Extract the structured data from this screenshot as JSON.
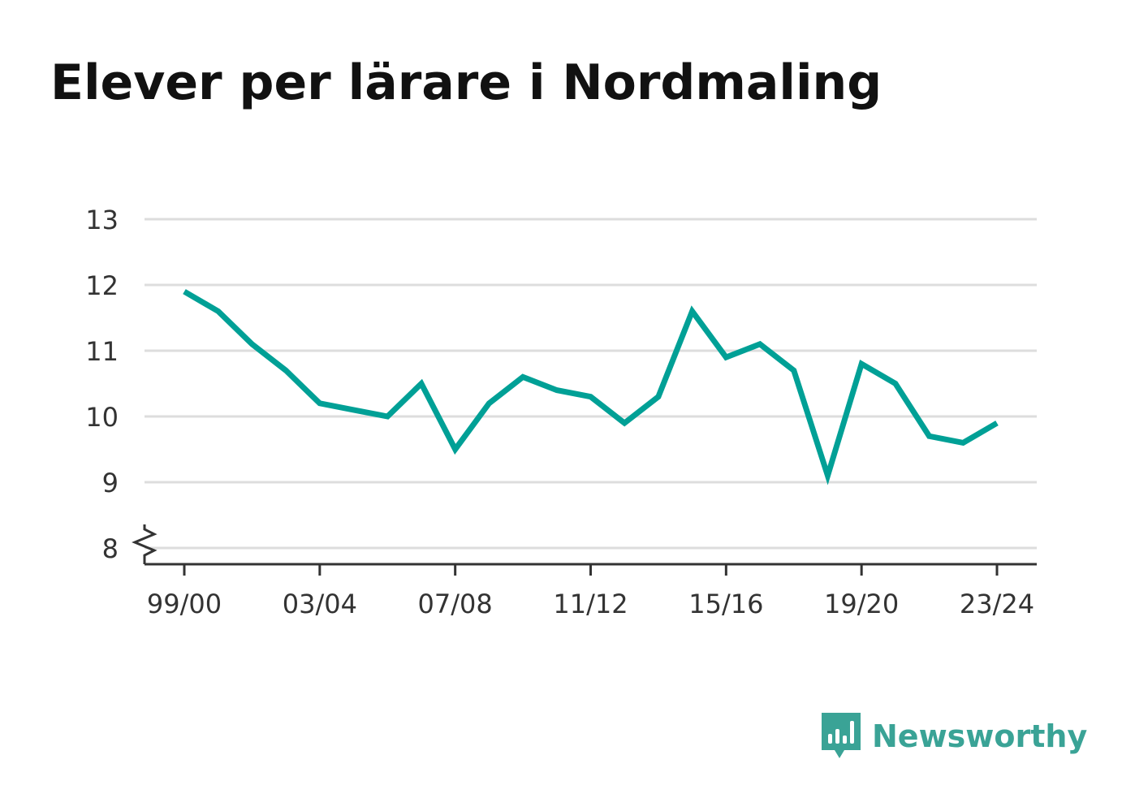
{
  "title": "Elever per lärare i Nordmaling",
  "brand": {
    "name": "Newsworthy",
    "logo_icon": "bar-chart-speech-bubble-icon",
    "color": "#3aa396"
  },
  "chart_data": {
    "type": "line",
    "title": "Elever per lärare i Nordmaling",
    "xlabel": "",
    "ylabel": "",
    "x": [
      "99/00",
      "00/01",
      "01/02",
      "02/03",
      "03/04",
      "04/05",
      "05/06",
      "06/07",
      "07/08",
      "08/09",
      "09/10",
      "10/11",
      "11/12",
      "12/13",
      "13/14",
      "14/15",
      "15/16",
      "16/17",
      "17/18",
      "18/19",
      "19/20",
      "20/21",
      "21/22",
      "22/23",
      "23/24"
    ],
    "x_tick_labels": [
      "99/00",
      "03/04",
      "07/08",
      "11/12",
      "15/16",
      "19/20",
      "23/24"
    ],
    "series": [
      {
        "color": "#00a096",
        "values": [
          11.9,
          11.6,
          11.1,
          10.7,
          10.2,
          10.1,
          10.0,
          10.5,
          9.5,
          10.2,
          10.6,
          10.4,
          10.3,
          9.9,
          10.3,
          11.6,
          10.9,
          11.1,
          10.7,
          9.1,
          10.8,
          10.5,
          9.7,
          9.6,
          9.9
        ]
      }
    ],
    "y_ticks": [
      8,
      9,
      10,
      11,
      12,
      13
    ],
    "ylim": [
      8,
      13
    ],
    "y_axis_break": true,
    "grid": true,
    "colors": {
      "line": "#00a096",
      "grid": "#dddddd",
      "axis": "#333333",
      "text": "#333333"
    }
  }
}
